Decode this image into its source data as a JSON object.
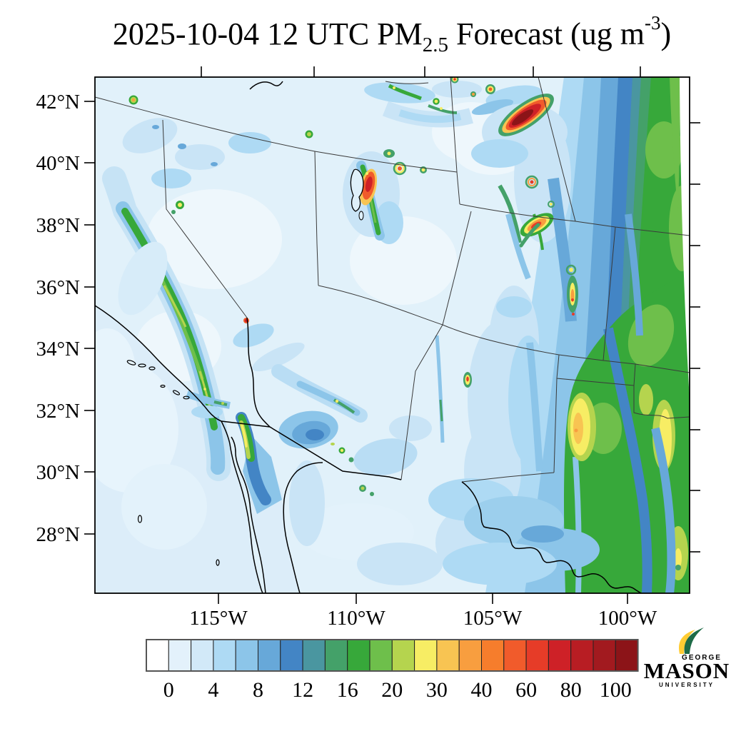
{
  "title": {
    "prefix": "2025-10-04 12 UTC PM",
    "subscript": "2.5",
    "middle": " Forecast (ug m",
    "superscript": "-3",
    "suffix": ")"
  },
  "map": {
    "y_axis": {
      "labels": [
        "42°N",
        "40°N",
        "38°N",
        "36°N",
        "34°N",
        "32°N",
        "30°N",
        "28°N"
      ]
    },
    "x_axis": {
      "labels": [
        "115°W",
        "110°W",
        "105°W",
        "100°W"
      ]
    }
  },
  "colorbar": {
    "unit": "ug m-3",
    "tick_labels": [
      "0",
      "4",
      "8",
      "12",
      "16",
      "20",
      "30",
      "40",
      "60",
      "80",
      "100"
    ],
    "boundaries": [
      0,
      2,
      4,
      6,
      8,
      10,
      12,
      14,
      16,
      18,
      20,
      25,
      30,
      35,
      40,
      50,
      60,
      70,
      80,
      90,
      100
    ],
    "colors": [
      "#ffffff",
      "#e3f1fb",
      "#d2e9f8",
      "#aedaf4",
      "#8cc5e9",
      "#67a8d9",
      "#4385c5",
      "#4a96a0",
      "#44a169",
      "#37a83a",
      "#6ebf4b",
      "#b5d44e",
      "#f7ed64",
      "#f8c452",
      "#f89e3f",
      "#f67d2c",
      "#f15b2b",
      "#e63c28",
      "#ce2127",
      "#b81d23",
      "#a21a1f",
      "#8c1418"
    ]
  },
  "logo": {
    "line1": "GEORGE",
    "line2": "MASON",
    "line3": "UNIVERSITY",
    "green": "#1e6b47",
    "gold": "#ffcc33"
  }
}
